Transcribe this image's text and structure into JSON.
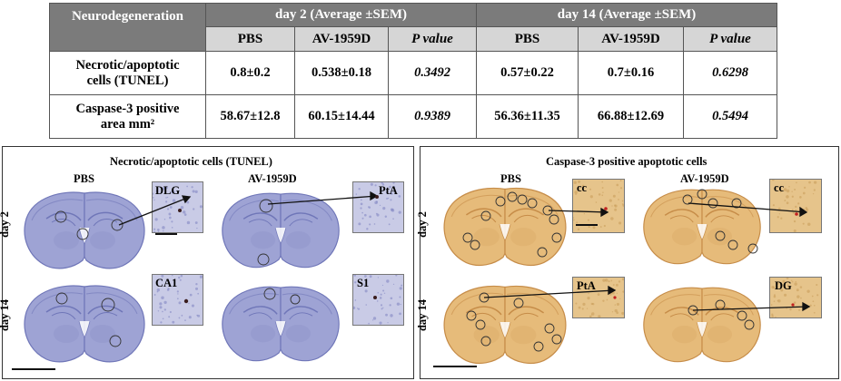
{
  "table": {
    "corner": "Neurodegeneration",
    "group_day2": "day 2 (Average ±SEM)",
    "group_day14": "day 14 (Average ±SEM)",
    "col_pbs": "PBS",
    "col_av": "AV-1959D",
    "col_p": "P value",
    "row1_line1": "Necrotic/apoptotic",
    "row1_line2": "cells (TUNEL)",
    "row2_line1": "Caspase-3 positive",
    "row2_line2": "area mm²",
    "row1": [
      "0.8±0.2",
      "0.538±0.18",
      "0.3492",
      "0.57±0.22",
      "0.7±0.16",
      "0.6298"
    ],
    "row2": [
      "58.67±12.8",
      "60.15±14.44",
      "0.9389",
      "56.36±11.35",
      "66.88±12.69",
      "0.5494"
    ]
  },
  "tunel_panel": {
    "title": "Necrotic/apoptotic cells (TUNEL)",
    "col_pbs": "PBS",
    "col_av": "AV-1959D",
    "row_day2": "day 2",
    "row_day14": "day 14",
    "inset_dlg": "DLG",
    "inset_pta": "PtA",
    "inset_ca1": "CA1",
    "inset_s1": "S1",
    "colors": {
      "stain": "#9ea3d4",
      "edge": "#6f76b8",
      "inset": "#c9cbe6"
    }
  },
  "caspase_panel": {
    "title": "Caspase-3 positive apoptotic cells",
    "col_pbs": "PBS",
    "col_av": "AV-1959D",
    "row_day2": "day 2",
    "row_day14": "day 14",
    "inset_cc1": "cc",
    "inset_cc2": "cc",
    "inset_pta": "PtA",
    "inset_dg": "DG",
    "colors": {
      "stain": "#e6bb7a",
      "edge": "#c68c48",
      "inset": "#e6c48b"
    }
  }
}
